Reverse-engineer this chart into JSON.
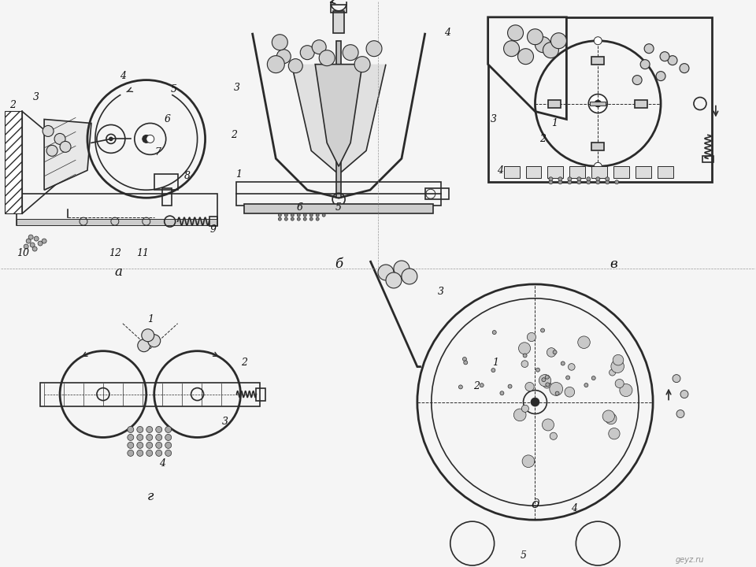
{
  "bg_color": "#f5f5f5",
  "line_color": "#2a2a2a",
  "label_color": "#111111",
  "title": "",
  "labels_a": [
    "2",
    "3",
    "4",
    "5",
    "6",
    "7",
    "8",
    "9",
    "10",
    "11",
    "12"
  ],
  "labels_b": [
    "1",
    "2",
    "3",
    "4",
    "5",
    "6"
  ],
  "labels_v": [
    "1",
    "2",
    "3",
    "4"
  ],
  "labels_g": [
    "1",
    "2",
    "3",
    "4"
  ],
  "labels_d": [
    "1",
    "2",
    "3",
    "4",
    "5"
  ],
  "diagram_labels": [
    "а",
    "б",
    "в",
    "г",
    "д"
  ],
  "watermark": "geyz.ru"
}
